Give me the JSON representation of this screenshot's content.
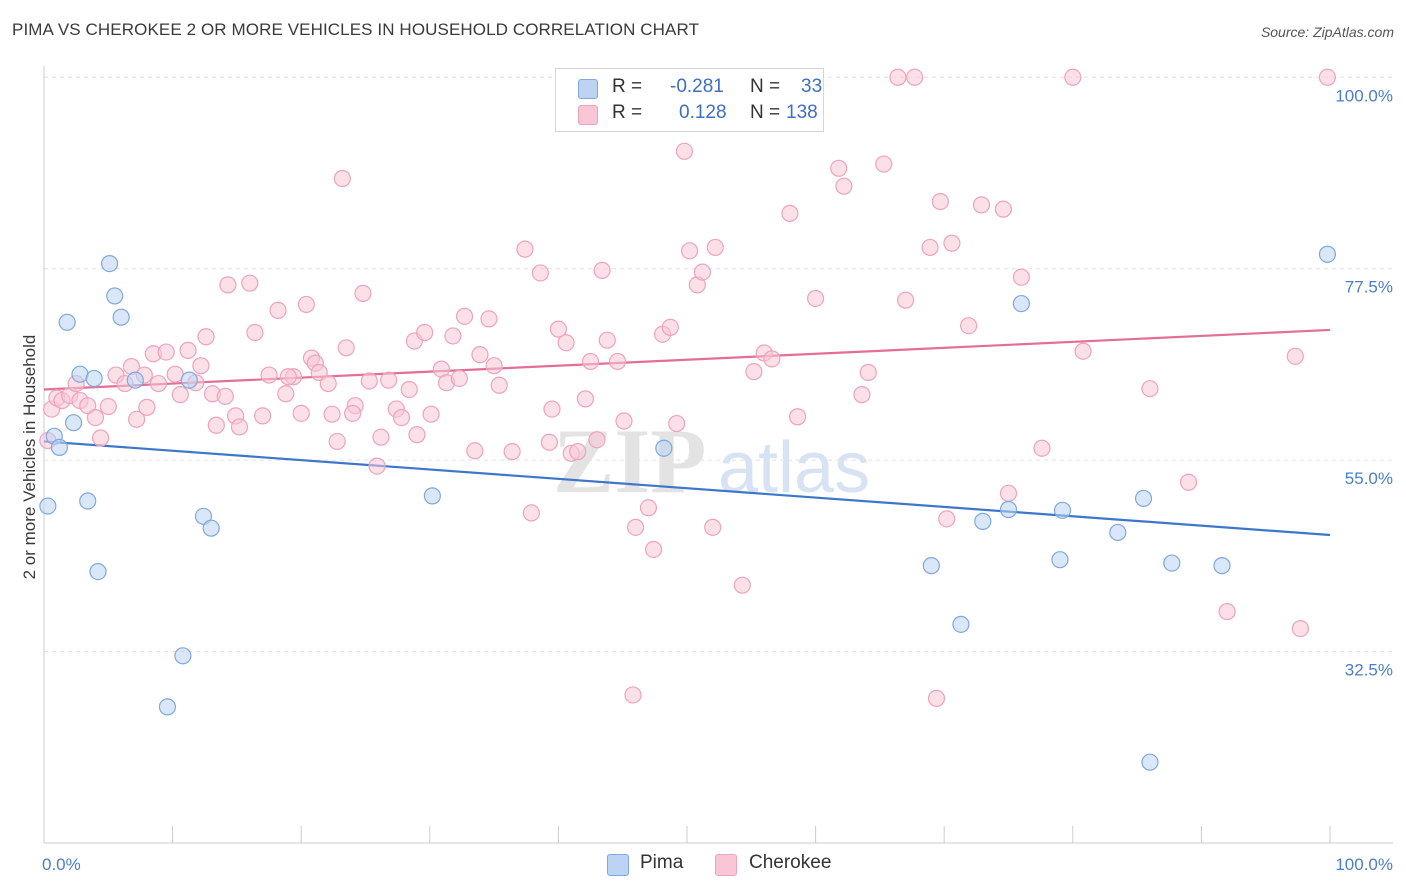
{
  "header": {
    "title": "PIMA VS CHEROKEE 2 OR MORE VEHICLES IN HOUSEHOLD CORRELATION CHART",
    "source": "Source: ZipAtlas.com"
  },
  "watermark": {
    "zip": "ZIP",
    "atlas": "atlas"
  },
  "legend_top": {
    "r_label": "R =",
    "n_label": "N =",
    "rows": [
      {
        "name": "Pima",
        "r": "-0.281",
        "n": "33"
      },
      {
        "name": "Cherokee",
        "r": "0.128",
        "n": "138"
      }
    ]
  },
  "legend_bottom": {
    "items": [
      "Pima",
      "Cherokee"
    ]
  },
  "colors": {
    "pima_fill": "#bcd3f3",
    "pima_stroke": "#7fa8de",
    "pima_line": "#3d77cc",
    "cherokee_fill": "#f8c6d5",
    "cherokee_stroke": "#eea3bb",
    "cherokee_line": "#e36f97",
    "tick_text": "#4a7fc8",
    "grid": "#e0e0e0"
  },
  "chart_data": {
    "type": "scatter",
    "title": "PIMA VS CHEROKEE 2 OR MORE VEHICLES IN HOUSEHOLD CORRELATION CHART",
    "xlabel": "",
    "ylabel": "2 or more Vehicles in Household",
    "xlim": [
      0,
      100
    ],
    "ylim": [
      10,
      102.5
    ],
    "x_tick_labels": [
      "0.0%",
      "100.0%"
    ],
    "y_ticks": [
      {
        "value": 100,
        "label": "100.0%"
      },
      {
        "value": 77.5,
        "label": "77.5%"
      },
      {
        "value": 55,
        "label": "55.0%"
      },
      {
        "value": 32.5,
        "label": "32.5%"
      }
    ],
    "grid": true,
    "series": [
      {
        "name": "Pima",
        "r": -0.281,
        "n": 33,
        "trend": [
          [
            0,
            57.2
          ],
          [
            100,
            46.2
          ]
        ],
        "points": [
          [
            0.3,
            49.6
          ],
          [
            0.8,
            57.8
          ],
          [
            1.2,
            56.5
          ],
          [
            1.8,
            71.2
          ],
          [
            2.3,
            59.4
          ],
          [
            2.8,
            65.1
          ],
          [
            3.4,
            50.2
          ],
          [
            3.9,
            64.6
          ],
          [
            4.2,
            41.9
          ],
          [
            5.1,
            78.1
          ],
          [
            5.5,
            74.3
          ],
          [
            6.0,
            71.8
          ],
          [
            7.1,
            64.4
          ],
          [
            9.6,
            26.0
          ],
          [
            10.8,
            32.0
          ],
          [
            11.3,
            64.4
          ],
          [
            12.4,
            48.4
          ],
          [
            13.0,
            47.0
          ],
          [
            30.2,
            50.8
          ],
          [
            48.2,
            56.4
          ],
          [
            69.0,
            42.6
          ],
          [
            71.3,
            35.7
          ],
          [
            73.0,
            47.8
          ],
          [
            75.0,
            49.2
          ],
          [
            76.0,
            73.4
          ],
          [
            79.0,
            43.3
          ],
          [
            79.2,
            49.1
          ],
          [
            83.5,
            46.5
          ],
          [
            85.5,
            50.5
          ],
          [
            86.0,
            19.5
          ],
          [
            87.7,
            42.9
          ],
          [
            91.6,
            42.6
          ],
          [
            99.8,
            79.2
          ]
        ]
      },
      {
        "name": "Cherokee",
        "r": 0.128,
        "n": 138,
        "trend": [
          [
            0,
            63.3
          ],
          [
            100,
            70.3
          ]
        ],
        "points": [
          [
            0.3,
            57.3
          ],
          [
            0.6,
            61.0
          ],
          [
            1.0,
            62.3
          ],
          [
            1.4,
            62.0
          ],
          [
            2.0,
            62.6
          ],
          [
            2.5,
            64.0
          ],
          [
            2.8,
            62.0
          ],
          [
            3.4,
            61.4
          ],
          [
            4.0,
            60.0
          ],
          [
            4.4,
            57.6
          ],
          [
            5.0,
            61.3
          ],
          [
            5.6,
            65.0
          ],
          [
            6.3,
            64.0
          ],
          [
            6.8,
            66.0
          ],
          [
            7.2,
            59.8
          ],
          [
            7.8,
            65.0
          ],
          [
            8.5,
            67.5
          ],
          [
            8.9,
            64.0
          ],
          [
            9.5,
            67.7
          ],
          [
            10.2,
            65.1
          ],
          [
            10.6,
            62.7
          ],
          [
            11.2,
            67.9
          ],
          [
            11.8,
            64.1
          ],
          [
            12.2,
            66.1
          ],
          [
            12.6,
            69.5
          ],
          [
            13.1,
            62.8
          ],
          [
            13.4,
            59.1
          ],
          [
            14.1,
            62.5
          ],
          [
            14.3,
            75.6
          ],
          [
            14.9,
            60.2
          ],
          [
            15.2,
            58.9
          ],
          [
            16.0,
            75.8
          ],
          [
            16.4,
            70.0
          ],
          [
            17.0,
            60.2
          ],
          [
            17.5,
            65.0
          ],
          [
            18.2,
            72.6
          ],
          [
            18.8,
            62.8
          ],
          [
            19.4,
            64.8
          ],
          [
            20.0,
            60.5
          ],
          [
            20.4,
            73.3
          ],
          [
            20.8,
            67.0
          ],
          [
            21.1,
            66.4
          ],
          [
            21.4,
            65.3
          ],
          [
            22.1,
            64.0
          ],
          [
            22.4,
            60.4
          ],
          [
            22.8,
            57.2
          ],
          [
            23.2,
            88.1
          ],
          [
            23.5,
            68.2
          ],
          [
            24.2,
            61.4
          ],
          [
            24.8,
            74.6
          ],
          [
            25.3,
            64.3
          ],
          [
            25.9,
            54.3
          ],
          [
            26.2,
            57.7
          ],
          [
            26.8,
            64.4
          ],
          [
            27.4,
            61.0
          ],
          [
            27.8,
            60.0
          ],
          [
            28.4,
            63.3
          ],
          [
            28.8,
            69.0
          ],
          [
            29.0,
            58.0
          ],
          [
            29.6,
            70.0
          ],
          [
            30.1,
            60.4
          ],
          [
            30.9,
            65.7
          ],
          [
            31.3,
            64.1
          ],
          [
            31.8,
            69.6
          ],
          [
            32.3,
            64.6
          ],
          [
            32.7,
            71.9
          ],
          [
            33.5,
            56.1
          ],
          [
            33.9,
            67.4
          ],
          [
            34.6,
            71.6
          ],
          [
            35.0,
            66.1
          ],
          [
            35.4,
            63.8
          ],
          [
            36.4,
            56.0
          ],
          [
            37.4,
            79.8
          ],
          [
            37.9,
            48.8
          ],
          [
            38.6,
            77.0
          ],
          [
            39.3,
            57.1
          ],
          [
            39.5,
            61.0
          ],
          [
            40.0,
            70.4
          ],
          [
            40.6,
            68.8
          ],
          [
            41.0,
            55.8
          ],
          [
            41.5,
            56.0
          ],
          [
            42.1,
            62.2
          ],
          [
            42.5,
            66.6
          ],
          [
            43.0,
            57.4
          ],
          [
            43.4,
            77.3
          ],
          [
            43.8,
            69.1
          ],
          [
            44.6,
            66.6
          ],
          [
            45.1,
            59.6
          ],
          [
            46.0,
            47.1
          ],
          [
            47.0,
            49.4
          ],
          [
            47.4,
            44.5
          ],
          [
            48.1,
            69.8
          ],
          [
            48.7,
            70.6
          ],
          [
            49.2,
            59.3
          ],
          [
            49.8,
            91.3
          ],
          [
            50.2,
            79.6
          ],
          [
            50.8,
            75.6
          ],
          [
            51.2,
            77.1
          ],
          [
            52.0,
            47.1
          ],
          [
            52.2,
            80.0
          ],
          [
            54.3,
            40.3
          ],
          [
            55.2,
            65.4
          ],
          [
            56.0,
            67.6
          ],
          [
            56.6,
            66.9
          ],
          [
            58.0,
            84.0
          ],
          [
            58.6,
            60.1
          ],
          [
            60.0,
            74.0
          ],
          [
            61.8,
            89.3
          ],
          [
            62.2,
            87.2
          ],
          [
            63.6,
            62.7
          ],
          [
            65.3,
            89.8
          ],
          [
            66.4,
            100.0
          ],
          [
            67.0,
            73.8
          ],
          [
            67.7,
            100.0
          ],
          [
            68.9,
            80.0
          ],
          [
            69.4,
            27.0
          ],
          [
            69.7,
            85.4
          ],
          [
            70.2,
            48.1
          ],
          [
            70.6,
            80.5
          ],
          [
            71.9,
            70.8
          ],
          [
            72.9,
            85.0
          ],
          [
            74.6,
            84.5
          ],
          [
            75.0,
            51.1
          ],
          [
            76.0,
            76.5
          ],
          [
            77.6,
            56.4
          ],
          [
            80.0,
            100.0
          ],
          [
            80.8,
            67.8
          ],
          [
            86.0,
            63.4
          ],
          [
            89.0,
            52.4
          ],
          [
            92.0,
            37.2
          ],
          [
            97.3,
            67.2
          ],
          [
            97.7,
            35.2
          ],
          [
            99.8,
            100.0
          ],
          [
            64.1,
            65.3
          ],
          [
            45.8,
            27.4
          ],
          [
            24.0,
            60.5
          ],
          [
            19.0,
            64.8
          ],
          [
            8.0,
            61.2
          ]
        ]
      }
    ]
  }
}
